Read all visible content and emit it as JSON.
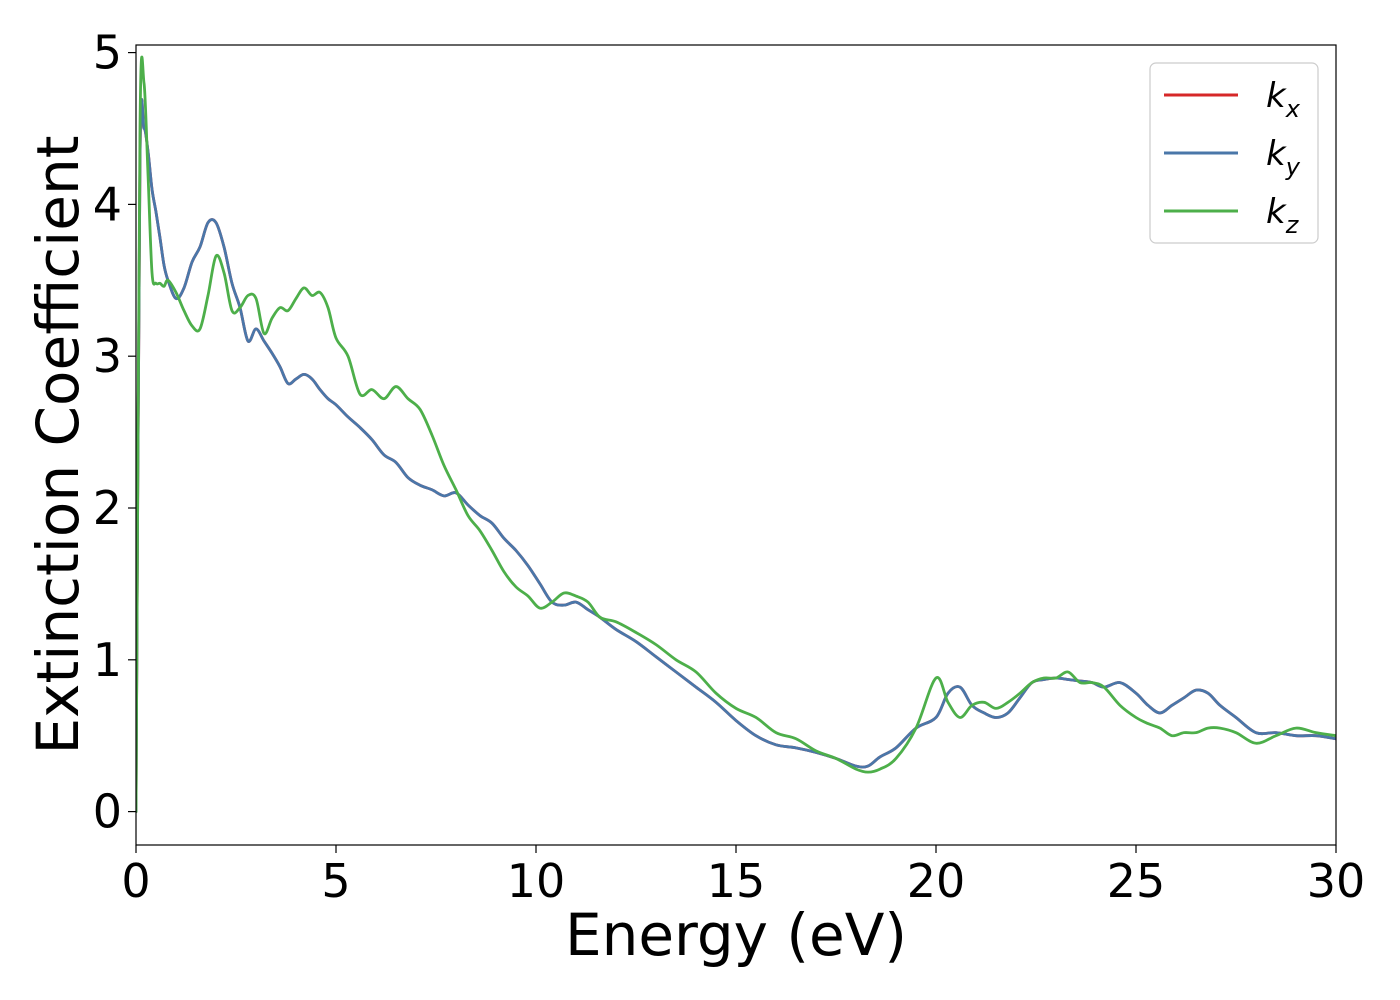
{
  "chart_data": {
    "type": "line",
    "title": "",
    "xlabel": "Energy (eV)",
    "ylabel": "Extinction Coefficient",
    "xlim": [
      0,
      30
    ],
    "ylim": [
      -0.22,
      5.05
    ],
    "xticks": [
      0,
      5,
      10,
      15,
      20,
      25,
      30
    ],
    "yticks": [
      0,
      1,
      2,
      3,
      4,
      5
    ],
    "grid": false,
    "legend_position": "top-right",
    "series": [
      {
        "name": "k",
        "subscript": "x",
        "color": "#d62728",
        "x": [
          0,
          0.1,
          0.2,
          0.3,
          0.4,
          0.5,
          0.6,
          0.7,
          0.8,
          1.0,
          1.2,
          1.4,
          1.6,
          1.8,
          2.0,
          2.2,
          2.4,
          2.6,
          2.8,
          3.0,
          3.2,
          3.4,
          3.6,
          3.8,
          4.0,
          4.2,
          4.4,
          4.6,
          4.8,
          5.0,
          5.3,
          5.6,
          5.9,
          6.2,
          6.5,
          6.8,
          7.1,
          7.4,
          7.7,
          8.0,
          8.3,
          8.6,
          8.9,
          9.2,
          9.5,
          9.8,
          10.1,
          10.4,
          10.7,
          11.0,
          11.3,
          11.6,
          12.0,
          12.5,
          13.0,
          13.5,
          14.0,
          14.5,
          15.0,
          15.5,
          16.0,
          16.5,
          17.0,
          17.5,
          18.0,
          18.3,
          18.6,
          19.0,
          19.5,
          20.0,
          20.3,
          20.6,
          20.9,
          21.2,
          21.5,
          21.8,
          22.1,
          22.4,
          22.7,
          23.0,
          23.3,
          23.6,
          23.9,
          24.2,
          24.6,
          25.0,
          25.3,
          25.6,
          25.9,
          26.2,
          26.5,
          26.8,
          27.1,
          27.5,
          28.0,
          28.5,
          29.0,
          29.5,
          30.0
        ],
        "values": [
          0,
          4.3,
          4.5,
          4.35,
          4.1,
          3.95,
          3.78,
          3.6,
          3.5,
          3.38,
          3.45,
          3.62,
          3.72,
          3.88,
          3.88,
          3.72,
          3.48,
          3.32,
          3.1,
          3.18,
          3.1,
          3.02,
          2.93,
          2.82,
          2.85,
          2.88,
          2.85,
          2.78,
          2.72,
          2.68,
          2.6,
          2.53,
          2.45,
          2.35,
          2.3,
          2.2,
          2.15,
          2.12,
          2.08,
          2.1,
          2.02,
          1.95,
          1.9,
          1.8,
          1.72,
          1.62,
          1.5,
          1.38,
          1.36,
          1.38,
          1.33,
          1.28,
          1.2,
          1.12,
          1.02,
          0.92,
          0.82,
          0.72,
          0.6,
          0.5,
          0.44,
          0.42,
          0.39,
          0.35,
          0.3,
          0.3,
          0.36,
          0.42,
          0.55,
          0.62,
          0.78,
          0.82,
          0.7,
          0.65,
          0.62,
          0.65,
          0.75,
          0.85,
          0.87,
          0.88,
          0.87,
          0.86,
          0.85,
          0.82,
          0.85,
          0.78,
          0.7,
          0.65,
          0.7,
          0.75,
          0.8,
          0.78,
          0.7,
          0.62,
          0.52,
          0.52,
          0.5,
          0.5,
          0.48
        ]
      },
      {
        "name": "k",
        "subscript": "y",
        "color": "#4a77a9",
        "x": [
          0,
          0.1,
          0.2,
          0.3,
          0.4,
          0.5,
          0.6,
          0.7,
          0.8,
          1.0,
          1.2,
          1.4,
          1.6,
          1.8,
          2.0,
          2.2,
          2.4,
          2.6,
          2.8,
          3.0,
          3.2,
          3.4,
          3.6,
          3.8,
          4.0,
          4.2,
          4.4,
          4.6,
          4.8,
          5.0,
          5.3,
          5.6,
          5.9,
          6.2,
          6.5,
          6.8,
          7.1,
          7.4,
          7.7,
          8.0,
          8.3,
          8.6,
          8.9,
          9.2,
          9.5,
          9.8,
          10.1,
          10.4,
          10.7,
          11.0,
          11.3,
          11.6,
          12.0,
          12.5,
          13.0,
          13.5,
          14.0,
          14.5,
          15.0,
          15.5,
          16.0,
          16.5,
          17.0,
          17.5,
          18.0,
          18.3,
          18.6,
          19.0,
          19.5,
          20.0,
          20.3,
          20.6,
          20.9,
          21.2,
          21.5,
          21.8,
          22.1,
          22.4,
          22.7,
          23.0,
          23.3,
          23.6,
          23.9,
          24.2,
          24.6,
          25.0,
          25.3,
          25.6,
          25.9,
          26.2,
          26.5,
          26.8,
          27.1,
          27.5,
          28.0,
          28.5,
          29.0,
          29.5,
          30.0
        ],
        "values": [
          0,
          4.3,
          4.5,
          4.35,
          4.1,
          3.95,
          3.78,
          3.6,
          3.5,
          3.38,
          3.45,
          3.62,
          3.72,
          3.88,
          3.88,
          3.72,
          3.48,
          3.32,
          3.1,
          3.18,
          3.1,
          3.02,
          2.93,
          2.82,
          2.85,
          2.88,
          2.85,
          2.78,
          2.72,
          2.68,
          2.6,
          2.53,
          2.45,
          2.35,
          2.3,
          2.2,
          2.15,
          2.12,
          2.08,
          2.1,
          2.02,
          1.95,
          1.9,
          1.8,
          1.72,
          1.62,
          1.5,
          1.38,
          1.36,
          1.38,
          1.33,
          1.28,
          1.2,
          1.12,
          1.02,
          0.92,
          0.82,
          0.72,
          0.6,
          0.5,
          0.44,
          0.42,
          0.39,
          0.35,
          0.3,
          0.3,
          0.36,
          0.42,
          0.55,
          0.62,
          0.78,
          0.82,
          0.7,
          0.65,
          0.62,
          0.65,
          0.75,
          0.85,
          0.87,
          0.88,
          0.87,
          0.86,
          0.85,
          0.82,
          0.85,
          0.78,
          0.7,
          0.65,
          0.7,
          0.75,
          0.8,
          0.78,
          0.7,
          0.62,
          0.52,
          0.52,
          0.5,
          0.5,
          0.48
        ]
      },
      {
        "name": "k",
        "subscript": "z",
        "color": "#4daf4a",
        "x": [
          0,
          0.1,
          0.2,
          0.3,
          0.4,
          0.5,
          0.6,
          0.7,
          0.8,
          1.0,
          1.2,
          1.4,
          1.6,
          1.8,
          2.0,
          2.2,
          2.4,
          2.6,
          2.8,
          3.0,
          3.2,
          3.4,
          3.6,
          3.8,
          4.0,
          4.2,
          4.4,
          4.6,
          4.8,
          5.0,
          5.3,
          5.6,
          5.9,
          6.2,
          6.5,
          6.8,
          7.1,
          7.4,
          7.7,
          8.0,
          8.3,
          8.6,
          8.9,
          9.2,
          9.5,
          9.8,
          10.1,
          10.4,
          10.7,
          11.0,
          11.3,
          11.6,
          12.0,
          12.5,
          13.0,
          13.5,
          14.0,
          14.5,
          15.0,
          15.5,
          16.0,
          16.5,
          17.0,
          17.5,
          18.0,
          18.3,
          18.6,
          19.0,
          19.5,
          20.0,
          20.3,
          20.6,
          20.9,
          21.2,
          21.5,
          21.8,
          22.1,
          22.4,
          22.7,
          23.0,
          23.3,
          23.6,
          23.9,
          24.2,
          24.6,
          25.0,
          25.3,
          25.6,
          25.9,
          26.2,
          26.5,
          26.8,
          27.1,
          27.5,
          28.0,
          28.5,
          29.0,
          29.5,
          30.0
        ],
        "values": [
          0,
          4.5,
          4.8,
          4.2,
          3.55,
          3.48,
          3.48,
          3.46,
          3.5,
          3.42,
          3.3,
          3.2,
          3.18,
          3.4,
          3.66,
          3.55,
          3.3,
          3.32,
          3.4,
          3.38,
          3.15,
          3.25,
          3.32,
          3.3,
          3.38,
          3.45,
          3.4,
          3.42,
          3.32,
          3.12,
          3.0,
          2.75,
          2.78,
          2.72,
          2.8,
          2.72,
          2.65,
          2.48,
          2.28,
          2.12,
          1.95,
          1.85,
          1.72,
          1.58,
          1.48,
          1.42,
          1.34,
          1.38,
          1.44,
          1.42,
          1.38,
          1.28,
          1.25,
          1.18,
          1.1,
          1.0,
          0.92,
          0.78,
          0.68,
          0.62,
          0.52,
          0.48,
          0.4,
          0.35,
          0.28,
          0.26,
          0.28,
          0.35,
          0.55,
          0.88,
          0.72,
          0.62,
          0.7,
          0.72,
          0.68,
          0.72,
          0.78,
          0.85,
          0.88,
          0.88,
          0.92,
          0.85,
          0.85,
          0.82,
          0.7,
          0.62,
          0.58,
          0.55,
          0.5,
          0.52,
          0.52,
          0.55,
          0.55,
          0.52,
          0.45,
          0.5,
          0.55,
          0.52,
          0.5
        ]
      }
    ]
  },
  "colors": {
    "axis": "#000000",
    "legend_border": "#cccccc",
    "background": "#ffffff"
  }
}
